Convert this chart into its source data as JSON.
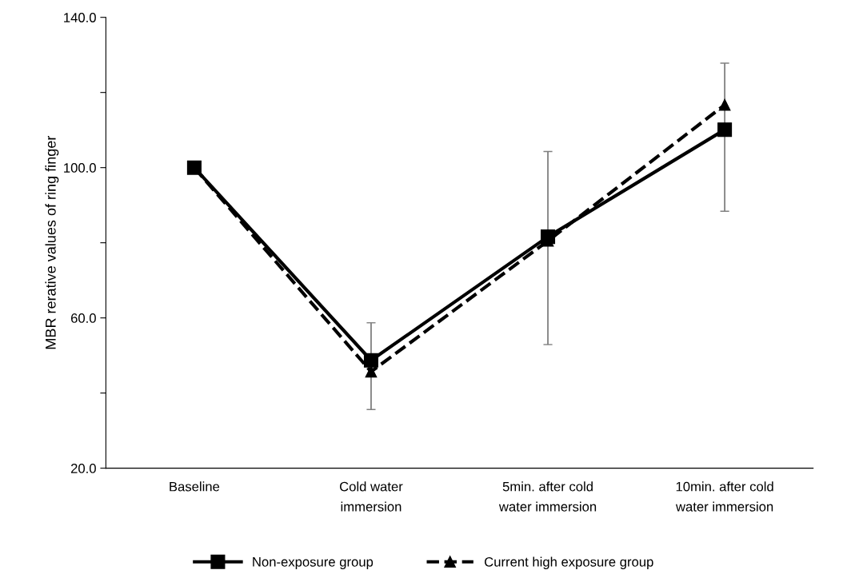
{
  "chart_data": {
    "type": "line",
    "ylabel": "MBR rerative values of ring finger",
    "categories": [
      "Baseline",
      "Cold water\nimmersion",
      "5min. after cold\nwater immersion",
      "10min. after cold\nwater immersion"
    ],
    "series": [
      {
        "name": "Non-exposure group",
        "color": "#000000",
        "marker": "square",
        "line_style": "solid",
        "values": [
          100,
          48.7,
          81.6,
          110.1
        ],
        "errors": [
          null,
          [
            35.6,
            58.7
          ],
          [
            52.9,
            104.3
          ],
          [
            88.4,
            127.8
          ]
        ]
      },
      {
        "name": "Current high exposure group",
        "color": "#000000",
        "marker": "triangle",
        "line_style": "dashed",
        "values": [
          100,
          45.7,
          80.5,
          116.7
        ]
      }
    ],
    "ylim": [
      20,
      140
    ],
    "yticks": [
      {
        "value": 20,
        "label": "20.0"
      },
      {
        "value": 40,
        "label": null
      },
      {
        "value": 60,
        "label": "60.0"
      },
      {
        "value": 80,
        "label": null
      },
      {
        "value": 100,
        "label": "100.0"
      },
      {
        "value": 120,
        "label": null
      },
      {
        "value": 140,
        "label": "140.0"
      }
    ],
    "grid": false,
    "legend": "bottom"
  }
}
